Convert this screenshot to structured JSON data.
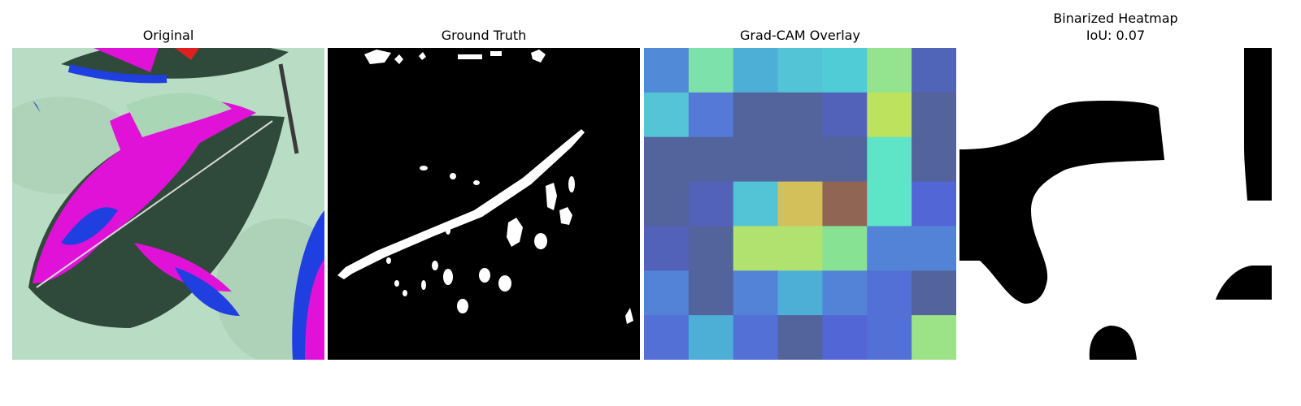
{
  "panels": [
    {
      "title": "Original"
    },
    {
      "title": "Ground Truth"
    },
    {
      "title": "Grad-CAM Overlay"
    },
    {
      "title": "Binarized Heatmap",
      "subtitle": "IoU: 0.07"
    }
  ],
  "chart_data": {
    "type": "heatmap",
    "iou": 0.07,
    "gradcam_grid_colors": [
      [
        "#518ad6",
        "#7ce1aa",
        "#4eafd6",
        "#53c4d6",
        "#50ccd6",
        "#93e38f",
        "#5065b8"
      ],
      [
        "#54c4d6",
        "#5479d6",
        "#53639b",
        "#53639b",
        "#5162b8",
        "#bde35e",
        "#53639b"
      ],
      [
        "#53639b",
        "#53639b",
        "#53639b",
        "#53639b",
        "#53639b",
        "#5ee5c8",
        "#53639b"
      ],
      [
        "#53639b",
        "#5162b8",
        "#53c4d6",
        "#d4c05a",
        "#916553",
        "#5ee5c8",
        "#5366d6"
      ],
      [
        "#5162b8",
        "#53639b",
        "#b1e270",
        "#b1e270",
        "#87e293",
        "#5383d6",
        "#5383d6"
      ],
      [
        "#5383d6",
        "#53639b",
        "#5383d6",
        "#4eafd6",
        "#5383d6",
        "#5370d6",
        "#53639b"
      ],
      [
        "#5370d6",
        "#4eafd6",
        "#5370d6",
        "#53639b",
        "#5366d6",
        "#5370d6",
        "#9ce387"
      ]
    ]
  }
}
